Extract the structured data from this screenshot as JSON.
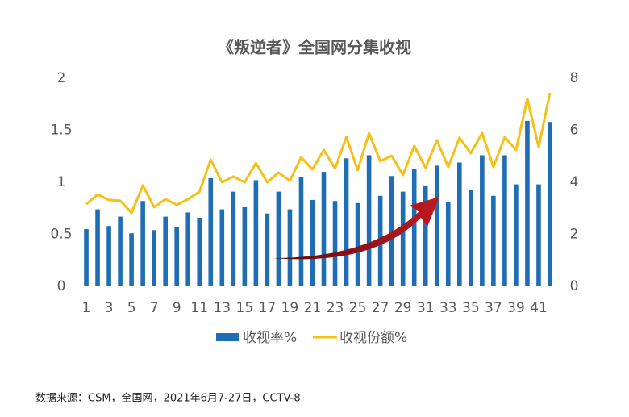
{
  "chart_data": {
    "type": "bar-line",
    "title": "《叛逆者》全国网分集收视",
    "source": "数据来源：CSM，全国网，2021年6月7-27日，CCTV-8",
    "categories": [
      "1",
      null,
      "3",
      null,
      "5",
      null,
      "7",
      null,
      "9",
      null,
      "11",
      null,
      "13",
      null,
      "15",
      null,
      "17",
      null,
      "19",
      null,
      "21",
      null,
      "23",
      null,
      "25",
      null,
      "27",
      null,
      "29",
      null,
      "31",
      null,
      "33",
      null,
      "35",
      null,
      "37",
      null,
      "39",
      null,
      "41",
      null
    ],
    "series": [
      {
        "name": "收视率%",
        "type": "bar",
        "color": "#1f6eb5",
        "values": [
          0.55,
          0.74,
          0.58,
          0.67,
          0.51,
          0.82,
          0.54,
          0.67,
          0.57,
          0.71,
          0.66,
          1.04,
          0.74,
          0.91,
          0.76,
          1.02,
          0.7,
          0.91,
          0.74,
          1.05,
          0.83,
          1.1,
          0.82,
          1.23,
          0.8,
          1.26,
          0.87,
          1.06,
          0.91,
          1.13,
          0.97,
          1.16,
          0.81,
          1.19,
          0.93,
          1.26,
          0.87,
          1.26,
          0.98,
          1.59,
          0.98,
          1.58
        ]
      },
      {
        "name": "收视份额%",
        "type": "line",
        "axis": "y2",
        "color": "#f5c018",
        "values": [
          3.16,
          3.53,
          3.32,
          3.29,
          2.82,
          3.88,
          3.04,
          3.35,
          3.13,
          3.35,
          3.63,
          4.87,
          4.0,
          4.22,
          4.0,
          4.74,
          4.0,
          4.37,
          4.06,
          4.96,
          4.5,
          5.24,
          4.53,
          5.74,
          4.47,
          5.89,
          4.81,
          5.02,
          4.28,
          5.4,
          4.56,
          5.61,
          4.59,
          5.71,
          5.12,
          5.89,
          4.59,
          5.74,
          5.24,
          7.22,
          5.36,
          7.44
        ]
      }
    ],
    "ylim": [
      0,
      2
    ],
    "yticks": [
      0,
      0.5,
      1,
      1.5,
      2
    ],
    "y2lim": [
      0,
      8
    ],
    "y2ticks": [
      0,
      2,
      4,
      6,
      8
    ],
    "grid": false
  }
}
